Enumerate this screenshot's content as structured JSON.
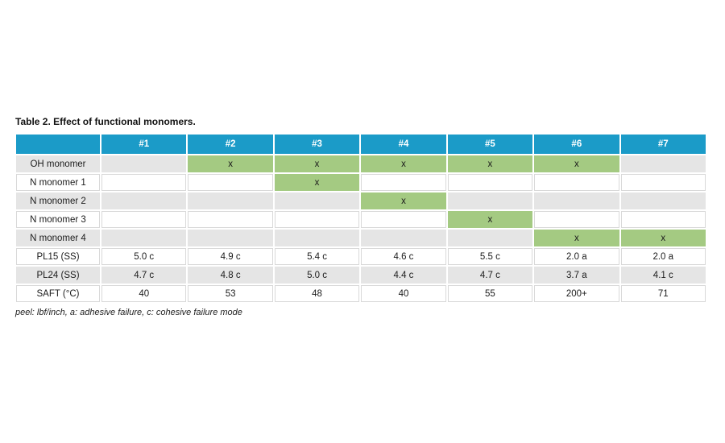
{
  "title": "Table 2. Effect of functional monomers.",
  "footnote": "peel: lbf/inch, a: adhesive failure, c: cohesive failure mode",
  "colors": {
    "header_bg": "#1b9bc8",
    "header_text": "#ffffff",
    "green_cell": "#a4ca82",
    "gray_cell": "#e5e5e5",
    "white_cell": "#ffffff",
    "hairline": "#d9d9d9",
    "body_text": "#1b1b1b"
  },
  "table": {
    "columns": [
      "",
      "#1",
      "#2",
      "#3",
      "#4",
      "#5",
      "#6",
      "#7"
    ],
    "x_mark": "x",
    "rows": [
      {
        "label": "OH monomer",
        "shade": "gray",
        "cells": [
          "",
          "x",
          "x",
          "x",
          "x",
          "x",
          ""
        ]
      },
      {
        "label": "N monomer 1",
        "shade": "white",
        "cells": [
          "",
          "",
          "x",
          "",
          "",
          "",
          ""
        ]
      },
      {
        "label": "N monomer 2",
        "shade": "gray",
        "cells": [
          "",
          "",
          "",
          "x",
          "",
          "",
          ""
        ]
      },
      {
        "label": "N monomer 3",
        "shade": "white",
        "cells": [
          "",
          "",
          "",
          "",
          "x",
          "",
          ""
        ]
      },
      {
        "label": "N monomer 4",
        "shade": "gray",
        "cells": [
          "",
          "",
          "",
          "",
          "",
          "x",
          "x"
        ]
      },
      {
        "label": "PL15 (SS)",
        "shade": "white",
        "cells": [
          "5.0 c",
          "4.9 c",
          "5.4 c",
          "4.6 c",
          "5.5 c",
          "2.0 a",
          "2.0 a"
        ]
      },
      {
        "label": "PL24 (SS)",
        "shade": "gray",
        "cells": [
          "4.7 c",
          "4.8 c",
          "5.0 c",
          "4.4 c",
          "4.7 c",
          "3.7 a",
          "4.1 c"
        ]
      },
      {
        "label": "SAFT (°C)",
        "shade": "white",
        "cells": [
          "40",
          "53",
          "48",
          "40",
          "55",
          "200+",
          "71"
        ]
      }
    ]
  }
}
